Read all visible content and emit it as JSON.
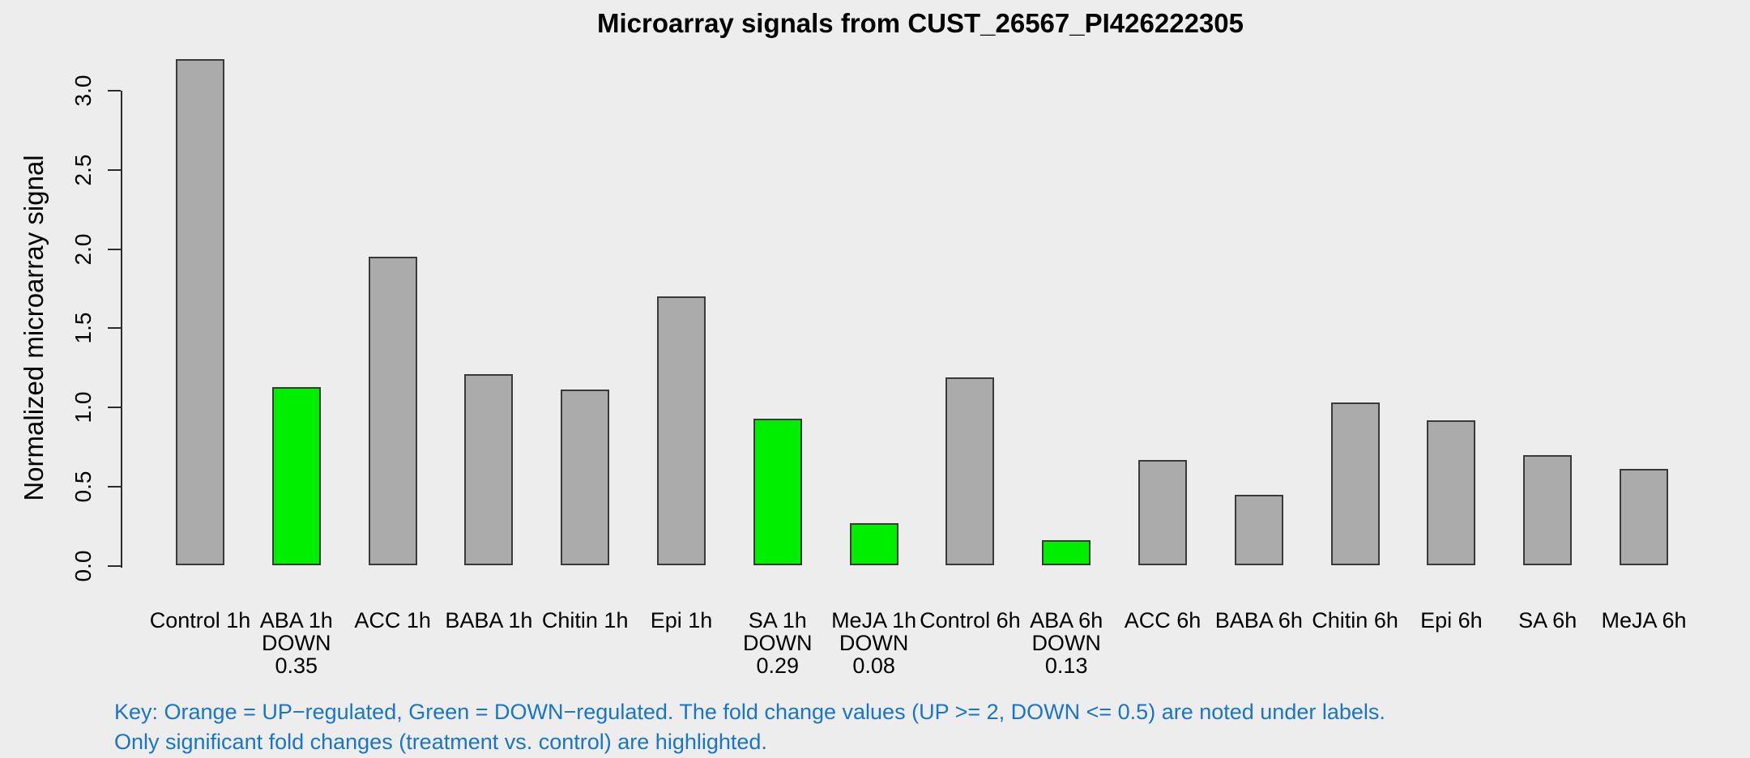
{
  "page": {
    "background": "#EDEDED"
  },
  "chart_data": {
    "type": "bar",
    "title": "Microarray signals from CUST_26567_PI426222305",
    "xlabel": "",
    "ylabel": "Normalized microarray signal",
    "ylim": [
      0.0,
      3.2
    ],
    "yticks": [
      0.0,
      0.5,
      1.0,
      1.5,
      2.0,
      2.5,
      3.0
    ],
    "grid": false,
    "legend": "none",
    "categories": [
      "Control 1h",
      "ABA 1h",
      "ACC 1h",
      "BABA 1h",
      "Chitin 1h",
      "Epi 1h",
      "SA 1h",
      "MeJA 1h",
      "Control 6h",
      "ABA 6h",
      "ACC 6h",
      "BABA 6h",
      "Chitin 6h",
      "Epi 6h",
      "SA 6h",
      "MeJA 6h"
    ],
    "values": [
      3.2,
      1.13,
      1.95,
      1.21,
      1.11,
      1.7,
      0.93,
      0.27,
      1.19,
      0.16,
      0.67,
      0.45,
      1.03,
      0.92,
      0.7,
      0.61
    ],
    "bar_states": [
      "normal",
      "down",
      "normal",
      "normal",
      "normal",
      "normal",
      "down",
      "down",
      "normal",
      "down",
      "normal",
      "normal",
      "normal",
      "normal",
      "normal",
      "normal"
    ],
    "down_label": "DOWN",
    "fold_changes": [
      null,
      "0.35",
      null,
      null,
      null,
      null,
      "0.29",
      "0.08",
      null,
      "0.13",
      null,
      null,
      null,
      null,
      null,
      null
    ],
    "colors": {
      "background": "#EDEDED",
      "bar_normal": "#ABABAB",
      "bar_down": "#00EE00",
      "bar_border": "#3A3A3A",
      "axis": "#2B2B2B",
      "text": "#000000",
      "key_text": "#1874CD"
    }
  },
  "key": {
    "line1": "Key: Orange = UP−regulated, Green = DOWN−regulated. The fold change values (UP >= 2, DOWN <= 0.5) are noted under labels.",
    "line2": "Only significant fold changes (treatment vs. control) are highlighted."
  }
}
